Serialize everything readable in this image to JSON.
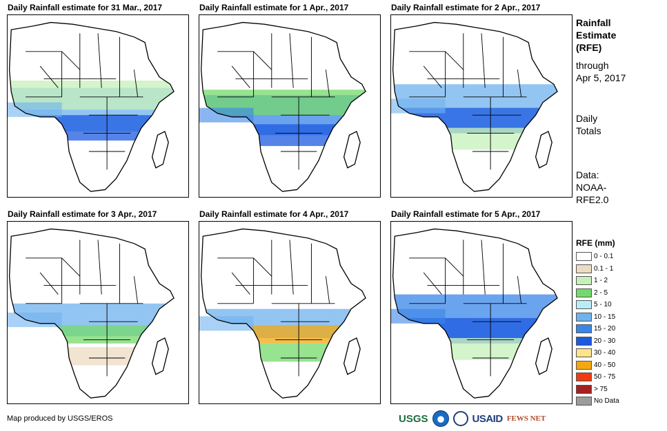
{
  "panels": [
    {
      "title": "Daily Rainfall estimate for 31 Mar., 2017",
      "bands": [
        {
          "y": 52,
          "width": 24,
          "level": "10 - 15"
        },
        {
          "y": 62,
          "width": 14,
          "level": "20 - 30"
        },
        {
          "y": 44,
          "width": 16,
          "level": "1 - 2"
        }
      ]
    },
    {
      "title": "Daily Rainfall estimate for 1 Apr., 2017",
      "bands": [
        {
          "y": 55,
          "width": 22,
          "level": "15 - 20"
        },
        {
          "y": 48,
          "width": 14,
          "level": "2 - 5"
        },
        {
          "y": 66,
          "width": 12,
          "level": "20 - 30"
        }
      ]
    },
    {
      "title": "Daily Rainfall estimate for 2 Apr., 2017",
      "bands": [
        {
          "y": 50,
          "width": 24,
          "level": "10 - 15"
        },
        {
          "y": 58,
          "width": 14,
          "level": "20 - 30"
        },
        {
          "y": 68,
          "width": 12,
          "level": "1 - 2"
        }
      ]
    },
    {
      "title": "Daily Rainfall estimate for 3 Apr., 2017",
      "bands": [
        {
          "y": 54,
          "width": 18,
          "level": "10 - 15"
        },
        {
          "y": 62,
          "width": 10,
          "level": "2 - 5"
        },
        {
          "y": 74,
          "width": 10,
          "level": "0.1 - 1"
        }
      ]
    },
    {
      "title": "Daily Rainfall estimate for 4 Apr., 2017",
      "bands": [
        {
          "y": 56,
          "width": 16,
          "level": "10 - 15"
        },
        {
          "y": 62,
          "width": 10,
          "level": "40 - 50"
        },
        {
          "y": 72,
          "width": 10,
          "level": "2 - 5"
        }
      ]
    },
    {
      "title": "Daily Rainfall estimate for 5 Apr., 2017",
      "bands": [
        {
          "y": 52,
          "width": 24,
          "level": "15 - 20"
        },
        {
          "y": 60,
          "width": 14,
          "level": "20 - 30"
        },
        {
          "y": 70,
          "width": 12,
          "level": "1 - 2"
        }
      ]
    }
  ],
  "side": {
    "title_lines": [
      "Rainfall",
      "Estimate",
      "(RFE)"
    ],
    "through_lines": [
      "through",
      "Apr 5, 2017"
    ],
    "daily_lines": [
      "Daily",
      "Totals"
    ],
    "data_lines": [
      "Data:",
      "NOAA-",
      "RFE2.0"
    ]
  },
  "legend": {
    "title": "RFE (mm)",
    "items": [
      {
        "label": "0 - 0.1",
        "color": "#ffffff"
      },
      {
        "label": "0.1 - 1",
        "color": "#ecdcc1"
      },
      {
        "label": "1 - 2",
        "color": "#c6f0b9"
      },
      {
        "label": "2 - 5",
        "color": "#74d96b"
      },
      {
        "label": "5 - 10",
        "color": "#b8edf7"
      },
      {
        "label": "10 - 15",
        "color": "#6fb2ee"
      },
      {
        "label": "15 - 20",
        "color": "#3a86e8"
      },
      {
        "label": "20 - 30",
        "color": "#1c5ae0"
      },
      {
        "label": "30 - 40",
        "color": "#fde38a"
      },
      {
        "label": "40 - 50",
        "color": "#f4a70e"
      },
      {
        "label": "50 - 75",
        "color": "#f03a12"
      },
      {
        "label": "> 75",
        "color": "#a52020"
      },
      {
        "label": "No Data",
        "color": "#9c9c9c"
      }
    ]
  },
  "footer": {
    "text": "Map produced by USGS/EROS"
  },
  "logos": {
    "usgs": "USGS",
    "usaid": "USAID",
    "fews": "FEWS NET"
  }
}
